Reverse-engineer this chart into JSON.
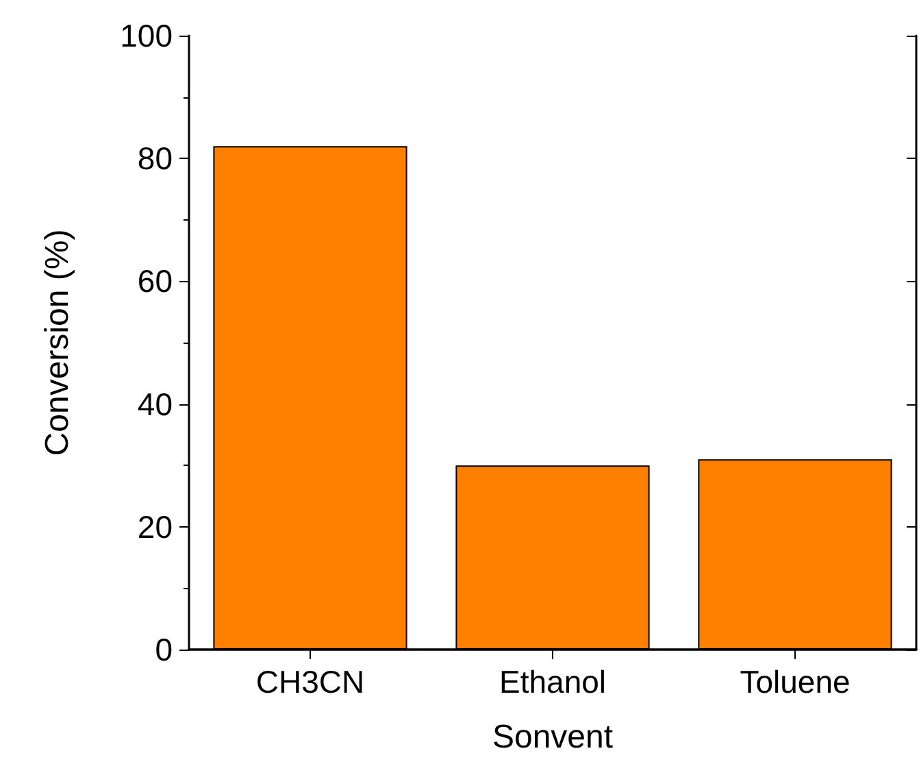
{
  "chart_data": {
    "type": "bar",
    "xlabel": "Sonvent",
    "ylabel": "Conversion (%)",
    "categories": [
      "CH3CN",
      "Ethanol",
      "Toluene"
    ],
    "values": [
      82,
      30,
      31
    ],
    "color": "#ff8000",
    "ylim": [
      0,
      100
    ],
    "yticks": [
      0,
      20,
      40,
      60,
      80,
      100
    ],
    "grid": false
  }
}
